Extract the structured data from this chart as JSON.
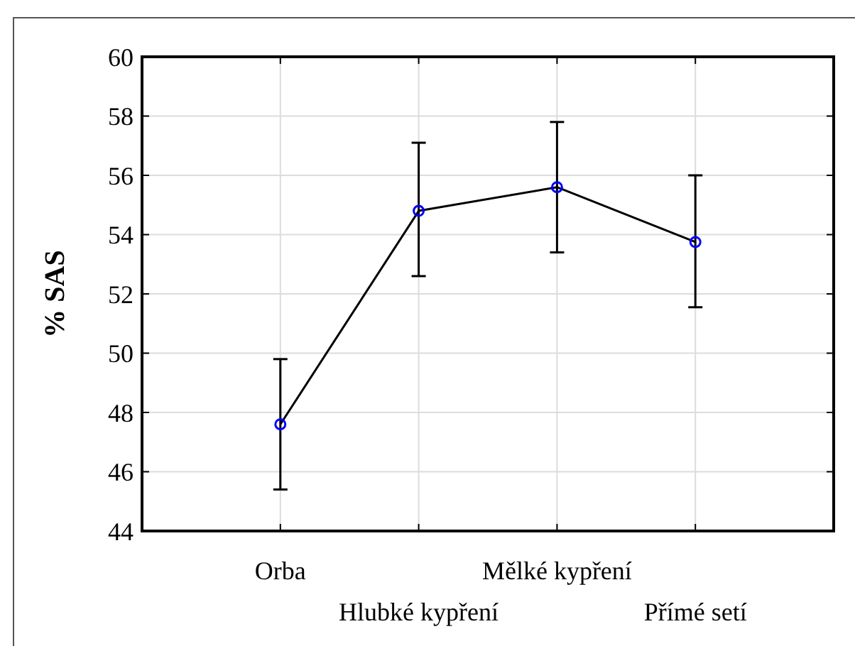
{
  "chart_data": {
    "type": "line",
    "ylabel": "% SAS",
    "categories": [
      "Orba",
      "Hlubké kypření",
      "Mělké kypření",
      "Přímé setí"
    ],
    "series": [
      {
        "color": "#000000",
        "values": [
          47.6,
          54.8,
          55.6,
          53.75
        ],
        "errors": [
          [
            45.4,
            49.8
          ],
          [
            52.6,
            57.1
          ],
          [
            53.4,
            57.8
          ],
          [
            51.55,
            56.0
          ]
        ]
      }
    ],
    "ylim": [
      44,
      60
    ],
    "yticks": [
      44,
      46,
      48,
      50,
      52,
      54,
      56,
      58,
      60
    ],
    "grid": true,
    "marker": "circle",
    "line_style": "solid"
  }
}
